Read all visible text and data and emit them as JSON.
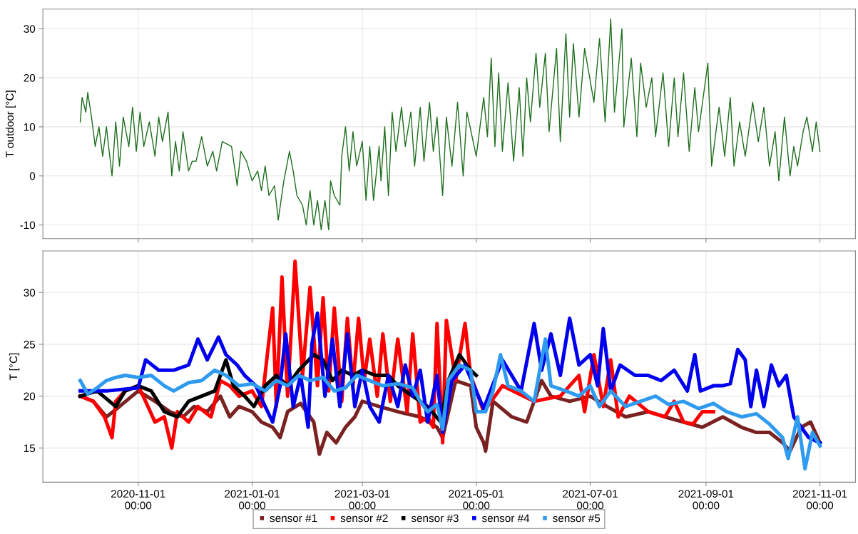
{
  "chart_data": [
    {
      "type": "line",
      "ylabel": "T outdoor [°C]",
      "xlim": [
        "2020-09-11",
        "2021-11-20"
      ],
      "ylim": [
        -12.8,
        34
      ],
      "yticks": [
        -10,
        0,
        10,
        20,
        30
      ],
      "xticks": [
        {
          "value": "2020-11-01",
          "label": null
        },
        {
          "value": "2021-01-01",
          "label": null
        },
        {
          "value": "2021-03-01",
          "label": null
        },
        {
          "value": "2021-05-01",
          "label": null
        },
        {
          "value": "2021-07-01",
          "label": null
        },
        {
          "value": "2021-09-01",
          "label": null
        },
        {
          "value": "2021-11-01",
          "label": null
        }
      ],
      "tick_labels": "y",
      "grid": true,
      "legend": false,
      "series": [
        {
          "color": "#1d6e1d",
          "x": [
            "2020-10-01",
            "2020-10-02",
            "2020-10-04",
            "2020-10-05",
            "2020-10-07",
            "2020-10-09",
            "2020-10-11",
            "2020-10-13",
            "2020-10-15",
            "2020-10-18",
            "2020-10-20",
            "2020-10-22",
            "2020-10-24",
            "2020-10-27",
            "2020-10-29",
            "2020-10-31",
            "2020-11-02",
            "2020-11-04",
            "2020-11-07",
            "2020-11-10",
            "2020-11-12",
            "2020-11-14",
            "2020-11-17",
            "2020-11-19",
            "2020-11-21",
            "2020-11-23",
            "2020-11-25",
            "2020-11-28",
            "2020-11-30",
            "2020-12-02",
            "2020-12-05",
            "2020-12-08",
            "2020-12-11",
            "2020-12-13",
            "2020-12-16",
            "2020-12-21",
            "2020-12-24",
            "2020-12-26",
            "2020-12-29",
            "2021-01-01",
            "2021-01-04",
            "2021-01-06",
            "2021-01-08",
            "2021-01-10",
            "2021-01-13",
            "2021-01-15",
            "2021-01-18",
            "2021-01-21",
            "2021-01-23",
            "2021-01-25",
            "2021-01-28",
            "2021-01-30",
            "2021-02-01",
            "2021-02-03",
            "2021-02-05",
            "2021-02-07",
            "2021-02-09",
            "2021-02-11",
            "2021-02-12",
            "2021-02-14",
            "2021-02-17",
            "2021-02-18",
            "2021-02-20",
            "2021-02-22",
            "2021-02-24",
            "2021-02-26",
            "2021-03-01",
            "2021-03-03",
            "2021-03-05",
            "2021-03-07",
            "2021-03-10",
            "2021-03-11",
            "2021-03-13",
            "2021-03-15",
            "2021-03-17",
            "2021-03-19",
            "2021-03-22",
            "2021-03-24",
            "2021-03-27",
            "2021-03-29",
            "2021-04-01",
            "2021-04-03",
            "2021-04-06",
            "2021-04-08",
            "2021-04-10",
            "2021-04-13",
            "2021-04-15",
            "2021-04-18",
            "2021-04-21",
            "2021-04-24",
            "2021-04-26",
            "2021-05-01",
            "2021-05-05",
            "2021-05-07",
            "2021-05-09",
            "2021-05-11",
            "2021-05-13",
            "2021-05-15",
            "2021-05-18",
            "2021-05-21",
            "2021-05-24",
            "2021-05-26",
            "2021-05-28",
            "2021-05-30",
            "2021-06-02",
            "2021-06-04",
            "2021-06-07",
            "2021-06-09",
            "2021-06-13",
            "2021-06-15",
            "2021-06-18",
            "2021-06-20",
            "2021-06-22",
            "2021-06-25",
            "2021-06-28",
            "2021-07-03",
            "2021-07-06",
            "2021-07-09",
            "2021-07-12",
            "2021-07-14",
            "2021-07-18",
            "2021-07-19",
            "2021-07-23",
            "2021-07-26",
            "2021-07-28",
            "2021-07-31",
            "2021-08-03",
            "2021-08-05",
            "2021-08-09",
            "2021-08-12",
            "2021-08-15",
            "2021-08-17",
            "2021-08-20",
            "2021-08-23",
            "2021-08-26",
            "2021-08-28",
            "2021-09-02",
            "2021-09-04",
            "2021-09-08",
            "2021-09-11",
            "2021-09-14",
            "2021-09-16",
            "2021-09-19",
            "2021-09-22",
            "2021-09-26",
            "2021-09-29",
            "2021-10-02",
            "2021-10-05",
            "2021-10-08",
            "2021-10-10",
            "2021-10-13",
            "2021-10-16",
            "2021-10-18",
            "2021-10-20",
            "2021-10-23",
            "2021-10-25",
            "2021-10-28",
            "2021-10-30",
            "2021-11-01"
          ],
          "values": [
            11,
            16,
            13,
            17,
            12,
            6,
            10,
            4,
            10,
            0,
            11,
            2,
            12,
            6,
            14,
            5,
            13,
            6,
            11,
            4,
            12,
            7,
            13,
            0,
            7,
            1,
            9,
            1,
            3,
            3,
            8,
            2,
            5,
            1,
            7,
            6,
            -2,
            5,
            3,
            -1,
            1,
            -3,
            2,
            -4,
            -2,
            -9,
            -1,
            5,
            1,
            -4,
            -6,
            -10,
            -3,
            -10,
            -5,
            -11,
            -5,
            -11,
            -1,
            -4,
            -6,
            4,
            10,
            1,
            9,
            2,
            7,
            -5,
            6,
            -5,
            6,
            -1,
            10,
            -4,
            13,
            5,
            14,
            6,
            13,
            2,
            14,
            3,
            15,
            5,
            12,
            -4,
            12,
            2,
            15,
            0,
            13,
            4,
            16,
            8,
            24,
            6,
            21,
            5,
            19,
            3,
            18,
            4,
            20,
            11,
            25,
            14,
            25,
            9,
            26,
            7,
            29,
            12,
            27,
            12,
            26,
            15,
            28,
            11,
            32,
            13,
            30,
            10,
            24,
            8,
            23,
            14,
            20,
            8,
            21,
            6,
            20,
            8,
            21,
            5,
            18,
            9,
            23,
            2,
            14,
            4,
            16,
            2,
            11,
            4,
            15,
            7,
            14,
            2,
            9,
            -1,
            12,
            0,
            6,
            2,
            9,
            12,
            5,
            11,
            5
          ]
        }
      ]
    },
    {
      "type": "line",
      "ylabel": "T [°C]",
      "xlim": [
        "2020-09-11",
        "2021-11-20"
      ],
      "ylim": [
        11.7,
        34
      ],
      "yticks": [
        15,
        20,
        25,
        30
      ],
      "xticks": [
        {
          "value": "2020-11-01",
          "label": "2020-11-01\n00:00"
        },
        {
          "value": "2021-01-01",
          "label": "2021-01-01\n00:00"
        },
        {
          "value": "2021-03-01",
          "label": "2021-03-01\n00:00"
        },
        {
          "value": "2021-05-01",
          "label": "2021-05-01\n00:00"
        },
        {
          "value": "2021-07-01",
          "label": "2021-07-01\n00:00"
        },
        {
          "value": "2021-09-01",
          "label": "2021-09-01\n00:00"
        },
        {
          "value": "2021-11-01",
          "label": "2021-11-01\n00:00"
        }
      ],
      "grid": true,
      "legend": "bottom",
      "series": [
        {
          "name": "sensor #1",
          "color": "#7a2222",
          "x": [
            "2020-10-01",
            "2020-10-08",
            "2020-10-15",
            "2020-10-22",
            "2020-11-01",
            "2020-11-10",
            "2020-11-18",
            "2020-11-25",
            "2020-12-01",
            "2020-12-08",
            "2020-12-15",
            "2020-12-20",
            "2020-12-25",
            "2021-01-01",
            "2021-01-06",
            "2021-01-12",
            "2021-01-16",
            "2021-01-20",
            "2021-01-27",
            "2021-02-03",
            "2021-02-06",
            "2021-02-10",
            "2021-02-15",
            "2021-02-20",
            "2021-02-25",
            "2021-03-01",
            "2021-03-10",
            "2021-03-20",
            "2021-04-01",
            "2021-04-10",
            "2021-04-13",
            "2021-04-20",
            "2021-04-28",
            "2021-05-01",
            "2021-05-05",
            "2021-05-06",
            "2021-05-10",
            "2021-05-20",
            "2021-05-28",
            "2021-06-05",
            "2021-06-10",
            "2021-06-20",
            "2021-07-01",
            "2021-07-10",
            "2021-07-20",
            "2021-08-01",
            "2021-08-10",
            "2021-08-20",
            "2021-08-30",
            "2021-09-10",
            "2021-09-20",
            "2021-09-28",
            "2021-10-05",
            "2021-10-12",
            "2021-10-16",
            "2021-10-22",
            "2021-10-27",
            "2021-11-01"
          ],
          "values": [
            20,
            19.5,
            18,
            19,
            20.5,
            19.5,
            18.5,
            18,
            19,
            18.5,
            20,
            18,
            19,
            18.5,
            17.5,
            17,
            16,
            18.5,
            19.3,
            17.5,
            14.4,
            16.5,
            15.5,
            17,
            18,
            19.5,
            19,
            18.5,
            18,
            17,
            16,
            21.5,
            21,
            17,
            15.5,
            14.7,
            19.5,
            18,
            17.5,
            21.5,
            20,
            19.5,
            20,
            19,
            18,
            18.5,
            18,
            17.5,
            17,
            18,
            17,
            16.5,
            16.5,
            15.5,
            14.7,
            17,
            17.5,
            15.5
          ]
        },
        {
          "name": "sensor #2",
          "color": "#ff0000",
          "x": [
            "2020-10-01",
            "2020-10-08",
            "2020-10-14",
            "2020-10-18",
            "2020-10-20",
            "2020-10-25",
            "2020-11-01",
            "2020-11-05",
            "2020-11-10",
            "2020-11-15",
            "2020-11-19",
            "2020-11-22",
            "2020-11-28",
            "2020-12-03",
            "2020-12-10",
            "2020-12-15",
            "2020-12-20",
            "2020-12-25",
            "2021-01-01",
            "2021-01-06",
            "2021-01-12",
            "2021-01-14",
            "2021-01-17",
            "2021-01-20",
            "2021-01-24",
            "2021-01-28",
            "2021-02-01",
            "2021-02-05",
            "2021-02-08",
            "2021-02-11",
            "2021-02-14",
            "2021-02-18",
            "2021-02-21",
            "2021-02-24",
            "2021-02-27",
            "2021-03-02",
            "2021-03-05",
            "2021-03-09",
            "2021-03-12",
            "2021-03-16",
            "2021-03-20",
            "2021-03-25",
            "2021-03-28",
            "2021-04-01",
            "2021-04-05",
            "2021-04-08",
            "2021-04-10",
            "2021-04-13",
            "2021-04-15",
            "2021-04-20",
            "2021-04-25",
            "2021-04-28",
            "2021-05-05",
            "2021-05-15",
            "2021-06-01",
            "2021-06-15",
            "2021-06-25",
            "2021-06-28",
            "2021-07-03",
            "2021-07-08",
            "2021-07-12",
            "2021-07-16",
            "2021-07-22",
            "2021-08-01",
            "2021-08-10",
            "2021-08-15",
            "2021-08-20",
            "2021-08-25",
            "2021-08-30",
            "2021-09-05"
          ],
          "values": [
            20,
            19.5,
            18,
            16,
            19.5,
            20.5,
            21,
            19.5,
            17.5,
            18,
            15,
            18.5,
            17.5,
            19,
            18,
            21.5,
            21,
            20,
            20.5,
            19,
            28.5,
            19,
            31.5,
            20,
            33,
            22,
            30.5,
            21,
            29.5,
            20.5,
            28.5,
            19.5,
            27.5,
            21,
            27.5,
            21.5,
            25.5,
            20,
            26,
            19.5,
            25.5,
            18.5,
            26,
            17.5,
            18,
            17,
            27,
            15.5,
            27.3,
            21.5,
            27,
            22,
            18.5,
            21,
            19.5,
            20,
            22,
            18.5,
            24,
            19,
            23.5,
            18,
            20,
            18.5,
            18,
            19.5,
            17.5,
            17.3,
            18.5,
            18.5
          ]
        },
        {
          "name": "sensor #3",
          "color": "#000000",
          "x": [
            "2020-10-01",
            "2020-10-10",
            "2020-10-20",
            "2020-10-25",
            "2020-11-01",
            "2020-11-08",
            "2020-11-15",
            "2020-11-22",
            "2020-11-28",
            "2020-12-05",
            "2020-12-12",
            "2020-12-18",
            "2020-12-22",
            "2020-12-28",
            "2021-01-02",
            "2021-01-08",
            "2021-01-14",
            "2021-01-20",
            "2021-01-26",
            "2021-02-03",
            "2021-02-08",
            "2021-02-13",
            "2021-02-18",
            "2021-02-24",
            "2021-03-01",
            "2021-03-08",
            "2021-03-15",
            "2021-03-20",
            "2021-03-28",
            "2021-04-05",
            "2021-04-12",
            "2021-04-16",
            "2021-04-22",
            "2021-04-28",
            "2021-05-01"
          ],
          "values": [
            20,
            20.5,
            19,
            20.5,
            21,
            20.5,
            18.5,
            18,
            19.5,
            20,
            20.5,
            23.5,
            21,
            20,
            19,
            21,
            22,
            21,
            22.5,
            24,
            23.5,
            21.5,
            22.5,
            22,
            22.5,
            22,
            22,
            21,
            20,
            19,
            17.5,
            21.5,
            24,
            22.5,
            22
          ]
        },
        {
          "name": "sensor #4",
          "color": "#0000ee",
          "x": [
            "2020-10-01",
            "2020-10-15",
            "2020-11-01",
            "2020-11-05",
            "2020-11-12",
            "2020-11-20",
            "2020-11-28",
            "2020-12-03",
            "2020-12-08",
            "2020-12-14",
            "2020-12-18",
            "2020-12-24",
            "2020-12-28",
            "2021-01-03",
            "2021-01-08",
            "2021-01-12",
            "2021-01-16",
            "2021-01-19",
            "2021-01-23",
            "2021-01-27",
            "2021-01-31",
            "2021-02-02",
            "2021-02-05",
            "2021-02-09",
            "2021-02-13",
            "2021-02-17",
            "2021-02-21",
            "2021-02-25",
            "2021-03-01",
            "2021-03-05",
            "2021-03-10",
            "2021-03-15",
            "2021-03-20",
            "2021-03-24",
            "2021-03-28",
            "2021-04-01",
            "2021-04-05",
            "2021-04-10",
            "2021-04-13",
            "2021-04-18",
            "2021-04-25",
            "2021-05-05",
            "2021-05-15",
            "2021-05-25",
            "2021-06-01",
            "2021-06-05",
            "2021-06-10",
            "2021-06-15",
            "2021-06-20",
            "2021-06-25",
            "2021-07-01",
            "2021-07-05",
            "2021-07-08",
            "2021-07-12",
            "2021-07-17",
            "2021-07-25",
            "2021-08-01",
            "2021-08-08",
            "2021-08-15",
            "2021-08-22",
            "2021-08-26",
            "2021-08-29",
            "2021-09-05",
            "2021-09-10",
            "2021-09-14",
            "2021-09-18",
            "2021-09-22",
            "2021-09-25",
            "2021-09-28",
            "2021-10-02",
            "2021-10-06",
            "2021-10-10",
            "2021-10-14",
            "2021-10-18",
            "2021-10-22",
            "2021-10-26",
            "2021-11-01"
          ],
          "values": [
            20.5,
            20.5,
            20.8,
            23.5,
            22.5,
            22.5,
            23,
            25.5,
            23.5,
            25.7,
            24,
            23,
            22,
            21,
            19,
            17.5,
            21,
            26,
            19,
            22,
            17,
            25,
            28,
            20,
            25.5,
            19,
            26,
            19,
            22.5,
            19,
            17.5,
            22,
            19,
            23,
            20,
            22.5,
            17.5,
            22,
            16.5,
            21.5,
            23,
            18.8,
            23.5,
            20.5,
            27,
            22.5,
            26,
            22,
            27.5,
            23,
            24,
            21,
            26.5,
            20.5,
            23,
            22,
            22,
            21.5,
            22.5,
            20.5,
            24,
            20.5,
            21,
            21,
            21.2,
            24.5,
            23.5,
            19,
            22.5,
            19,
            23,
            21,
            22,
            18,
            17,
            16,
            15.5
          ]
        },
        {
          "name": "sensor #5",
          "color": "#2e9bf0",
          "x": [
            "2020-10-01",
            "2020-10-05",
            "2020-10-10",
            "2020-10-15",
            "2020-10-20",
            "2020-10-25",
            "2020-11-01",
            "2020-11-08",
            "2020-11-15",
            "2020-11-20",
            "2020-11-28",
            "2020-12-05",
            "2020-12-12",
            "2020-12-18",
            "2020-12-25",
            "2021-01-01",
            "2021-01-08",
            "2021-01-14",
            "2021-01-20",
            "2021-01-26",
            "2021-02-01",
            "2021-02-08",
            "2021-02-14",
            "2021-02-20",
            "2021-02-26",
            "2021-03-05",
            "2021-03-12",
            "2021-03-20",
            "2021-03-28",
            "2021-04-01",
            "2021-04-05",
            "2021-04-10",
            "2021-04-13",
            "2021-04-16",
            "2021-04-22",
            "2021-04-28",
            "2021-05-01",
            "2021-05-06",
            "2021-05-10",
            "2021-05-14",
            "2021-05-18",
            "2021-05-25",
            "2021-06-01",
            "2021-06-07",
            "2021-06-10",
            "2021-06-18",
            "2021-06-25",
            "2021-07-01",
            "2021-07-06",
            "2021-07-12",
            "2021-07-20",
            "2021-07-28",
            "2021-08-05",
            "2021-08-12",
            "2021-08-20",
            "2021-08-28",
            "2021-09-05",
            "2021-09-12",
            "2021-09-20",
            "2021-09-28",
            "2021-10-05",
            "2021-10-12",
            "2021-10-15",
            "2021-10-20",
            "2021-10-24",
            "2021-10-28",
            "2021-11-01"
          ],
          "values": [
            21.5,
            20.2,
            20.8,
            21.5,
            21.8,
            22,
            21.8,
            22,
            21,
            20.5,
            21.3,
            21.5,
            22.5,
            22,
            21,
            21.2,
            20.5,
            21.5,
            21,
            22,
            21.5,
            21.8,
            20.5,
            20.8,
            22,
            21.5,
            21,
            21.2,
            20.8,
            19.5,
            18.5,
            19.2,
            16.8,
            21.5,
            23,
            22.5,
            18.5,
            18.5,
            20.5,
            24,
            21,
            20.5,
            19.5,
            25.5,
            21,
            20.5,
            20,
            21,
            19,
            20.5,
            19,
            19.5,
            20,
            19.2,
            19.5,
            18.8,
            19.3,
            18.5,
            18,
            18.3,
            17.3,
            16,
            14,
            18,
            13,
            16.5,
            15.2
          ]
        }
      ]
    }
  ]
}
